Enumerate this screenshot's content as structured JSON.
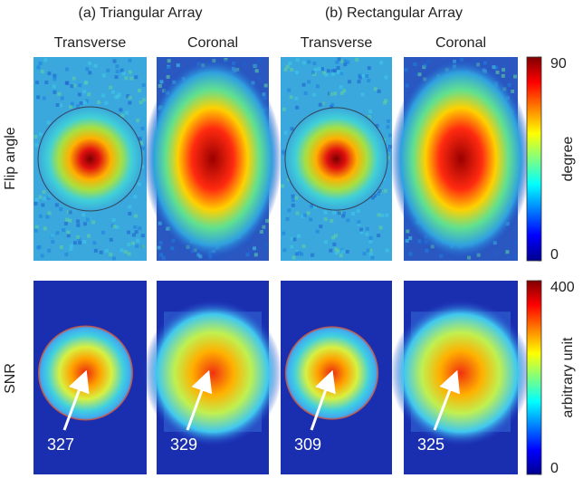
{
  "columns": {
    "groups": [
      "(a) Triangular Array",
      "(b) Rectangular Array"
    ],
    "titles": [
      "Transverse",
      "Coronal",
      "Transverse",
      "Coronal"
    ]
  },
  "rows": [
    {
      "label": "Flip angle",
      "colorbar": {
        "label": "degree",
        "lim": [
          0,
          90
        ],
        "ticks": [
          0,
          90
        ]
      }
    },
    {
      "label": "SNR",
      "colorbar": {
        "label": "arbitrary unit",
        "lim": [
          0,
          400
        ],
        "ticks": [
          0,
          400
        ]
      },
      "peaks": [
        327,
        329,
        309,
        325
      ]
    }
  ]
}
